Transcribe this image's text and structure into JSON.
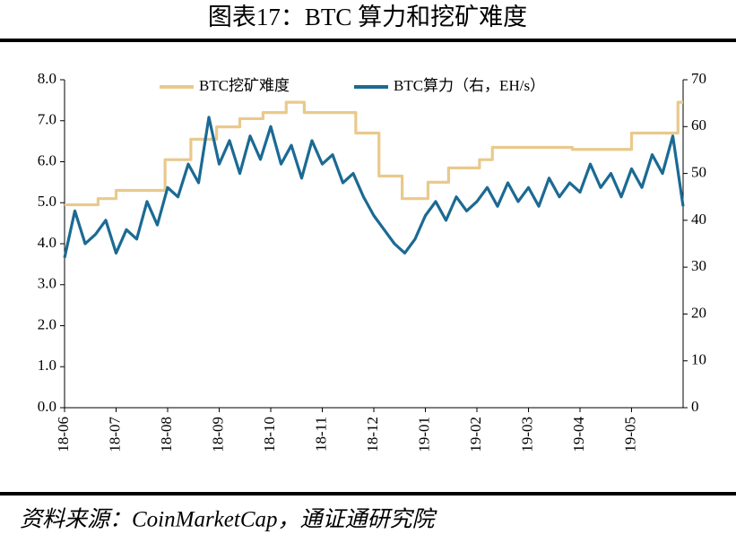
{
  "chart_data": {
    "type": "line",
    "title": "图表17：BTC 算力和挖矿难度",
    "source": "资料来源：CoinMarketCap，通证通研究院",
    "xlim": [
      0,
      12
    ],
    "xticks": [
      {
        "value": 0,
        "label": "18-06"
      },
      {
        "value": 1,
        "label": "18-07"
      },
      {
        "value": 2,
        "label": "18-08"
      },
      {
        "value": 3,
        "label": "18-09"
      },
      {
        "value": 4,
        "label": "18-10"
      },
      {
        "value": 5,
        "label": "18-11"
      },
      {
        "value": 6,
        "label": "18-12"
      },
      {
        "value": 7,
        "label": "19-01"
      },
      {
        "value": 8,
        "label": "19-02"
      },
      {
        "value": 9,
        "label": "19-03"
      },
      {
        "value": 10,
        "label": "19-04"
      },
      {
        "value": 11,
        "label": "19-05"
      }
    ],
    "ylim": [
      0,
      8
    ],
    "yticks": [
      {
        "value": 0,
        "label": "0.0"
      },
      {
        "value": 1,
        "label": "1.0"
      },
      {
        "value": 2,
        "label": "2.0"
      },
      {
        "value": 3,
        "label": "3.0"
      },
      {
        "value": 4,
        "label": "4.0"
      },
      {
        "value": 5,
        "label": "5.0"
      },
      {
        "value": 6,
        "label": "6.0"
      },
      {
        "value": 7,
        "label": "7.0"
      },
      {
        "value": 8,
        "label": "8.0"
      }
    ],
    "y2lim": [
      0,
      70
    ],
    "y2ticks": [
      0,
      10,
      20,
      30,
      40,
      50,
      60,
      70
    ],
    "grid": false,
    "legend": "top",
    "series": [
      {
        "name": "BTC挖矿难度",
        "color": "#E9C98C",
        "x": [
          0,
          0.65,
          0.65,
          1.0,
          1.0,
          1.95,
          1.95,
          2.45,
          2.45,
          2.95,
          2.95,
          3.4,
          3.4,
          3.85,
          3.85,
          4.3,
          4.3,
          4.65,
          4.65,
          5.65,
          5.65,
          6.1,
          6.1,
          6.55,
          6.55,
          7.05,
          7.05,
          7.45,
          7.45,
          8.05,
          8.05,
          8.3,
          8.3,
          9.85,
          9.85,
          11.0,
          11.0,
          11.9,
          11.9,
          12.0
        ],
        "values": [
          4.95,
          4.95,
          5.1,
          5.1,
          5.3,
          5.3,
          6.05,
          6.05,
          6.55,
          6.55,
          6.85,
          6.85,
          7.05,
          7.05,
          7.2,
          7.2,
          7.45,
          7.45,
          7.2,
          7.2,
          6.7,
          6.7,
          5.65,
          5.65,
          5.1,
          5.1,
          5.5,
          5.5,
          5.85,
          5.85,
          6.05,
          6.05,
          6.35,
          6.35,
          6.3,
          6.3,
          6.7,
          6.7,
          7.45,
          7.45
        ]
      },
      {
        "name": "BTC算力（右，EH/s）",
        "color": "#1B6A93",
        "axis": "y2",
        "x": [
          0,
          0.2,
          0.4,
          0.6,
          0.8,
          1.0,
          1.2,
          1.4,
          1.6,
          1.8,
          2.0,
          2.2,
          2.4,
          2.6,
          2.8,
          3.0,
          3.2,
          3.4,
          3.6,
          3.8,
          4.0,
          4.2,
          4.4,
          4.6,
          4.8,
          5.0,
          5.2,
          5.4,
          5.6,
          5.8,
          6.0,
          6.2,
          6.4,
          6.6,
          6.8,
          7.0,
          7.2,
          7.4,
          7.6,
          7.8,
          8.0,
          8.2,
          8.4,
          8.6,
          8.8,
          9.0,
          9.2,
          9.4,
          9.6,
          9.8,
          10.0,
          10.2,
          10.4,
          10.6,
          10.8,
          11.0,
          11.2,
          11.4,
          11.6,
          11.8,
          12.0
        ],
        "values": [
          32,
          42,
          35,
          37,
          40,
          33,
          38,
          36,
          44,
          39,
          47,
          45,
          52,
          48,
          62,
          52,
          57,
          50,
          58,
          53,
          60,
          52,
          56,
          49,
          57,
          52,
          54,
          48,
          50,
          45,
          41,
          38,
          35,
          33,
          36,
          41,
          44,
          40,
          45,
          42,
          44,
          47,
          43,
          48,
          44,
          47,
          43,
          49,
          45,
          48,
          46,
          52,
          47,
          50,
          45,
          51,
          47,
          54,
          50,
          58,
          43
        ]
      }
    ]
  }
}
